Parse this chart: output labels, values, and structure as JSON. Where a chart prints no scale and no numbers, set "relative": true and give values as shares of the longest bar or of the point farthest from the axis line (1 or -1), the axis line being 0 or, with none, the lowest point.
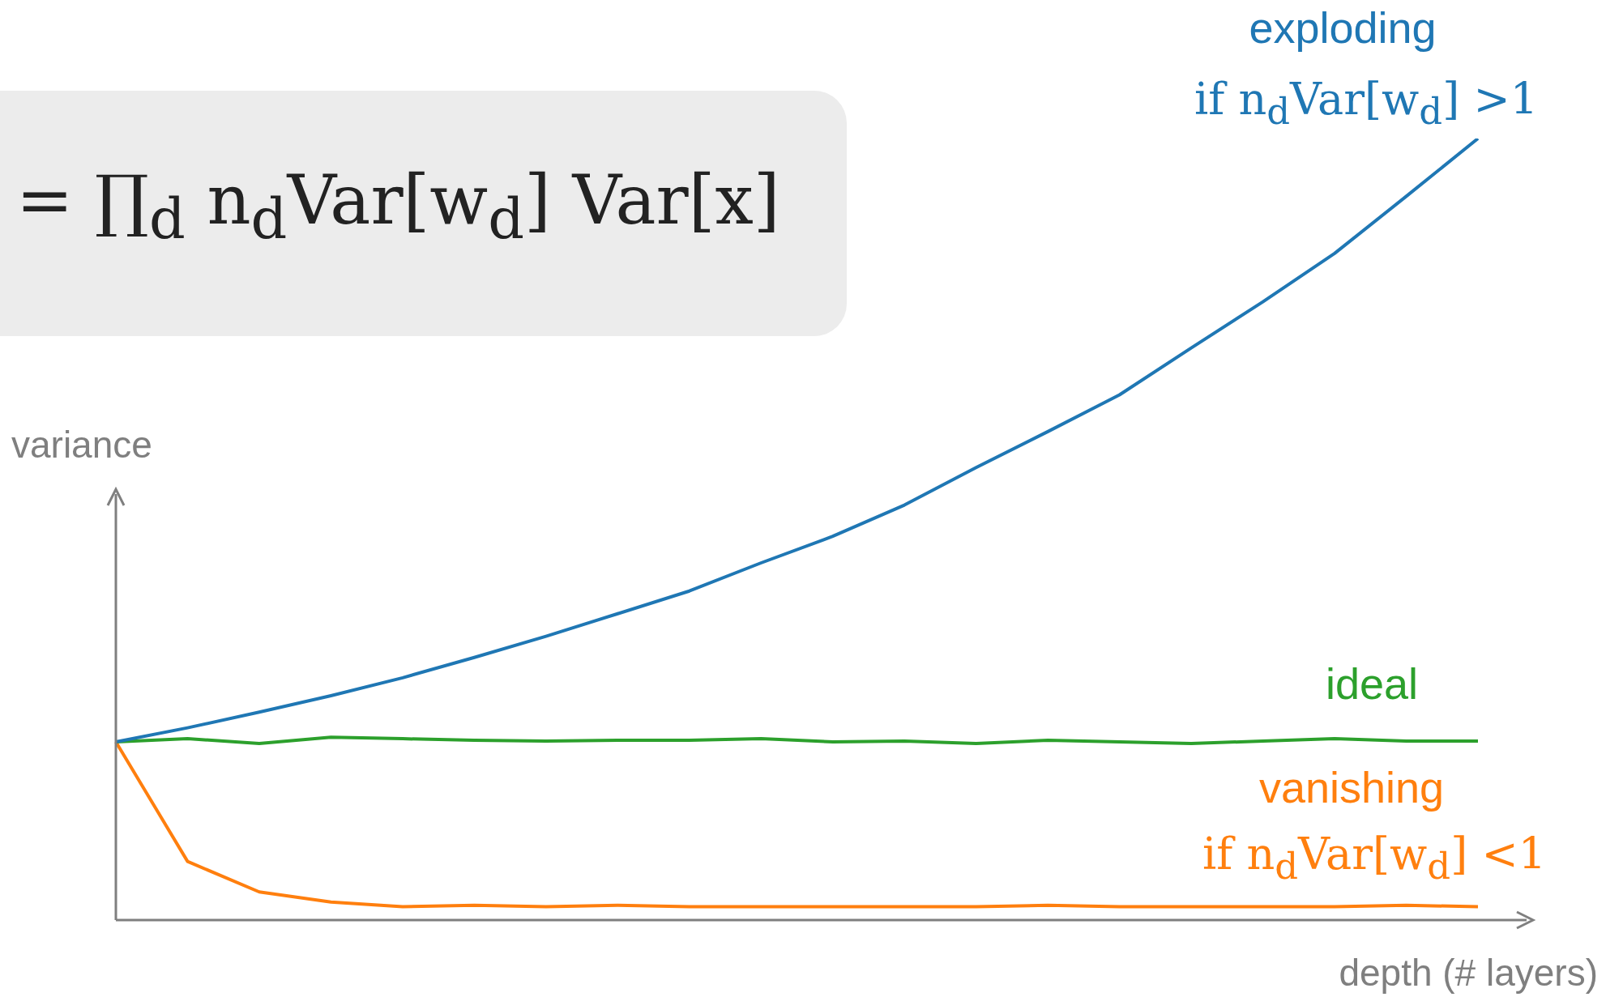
{
  "chart_data": {
    "type": "line",
    "relative": true,
    "xlabel": "depth (# layers)",
    "ylabel": "variance",
    "categories": [
      null,
      null,
      null,
      null,
      null,
      null,
      null,
      null,
      null,
      null,
      null,
      null,
      null,
      null,
      null,
      null,
      null,
      null,
      null,
      null
    ],
    "series": [
      {
        "name": "exploding",
        "color": "#1f77b4",
        "values": [
          0.228,
          0.246,
          0.266,
          0.287,
          0.31,
          0.336,
          0.363,
          0.392,
          0.421,
          0.457,
          0.491,
          0.531,
          0.579,
          0.625,
          0.672,
          0.732,
          0.791,
          0.853,
          0.926,
          1
        ]
      },
      {
        "name": "ideal",
        "color": "#2ca02c",
        "values": [
          0.228,
          0.232,
          0.226,
          0.234,
          0.232,
          0.23,
          0.229,
          0.23,
          0.23,
          0.232,
          0.228,
          0.229,
          0.226,
          0.23,
          0.228,
          0.226,
          0.229,
          0.232,
          0.229,
          0.229
        ]
      },
      {
        "name": "vanishing",
        "color": "#ff7f0e",
        "values": [
          0.228,
          0.075,
          0.036,
          0.023,
          0.017,
          0.019,
          0.017,
          0.019,
          0.017,
          0.017,
          0.017,
          0.017,
          0.017,
          0.019,
          0.017,
          0.017,
          0.017,
          0.017,
          0.019,
          0.017
        ]
      }
    ],
    "annotations": [
      "= ∏$_{d}$ n$_{d}$Var[w$_{d}$] Var[x]",
      "if n$_{d}$Var[w$_{d}$] >1",
      "if n$_{d}$Var[w$_{d}$] <1"
    ],
    "legend": false,
    "marker": "none",
    "line_style": "solid"
  }
}
